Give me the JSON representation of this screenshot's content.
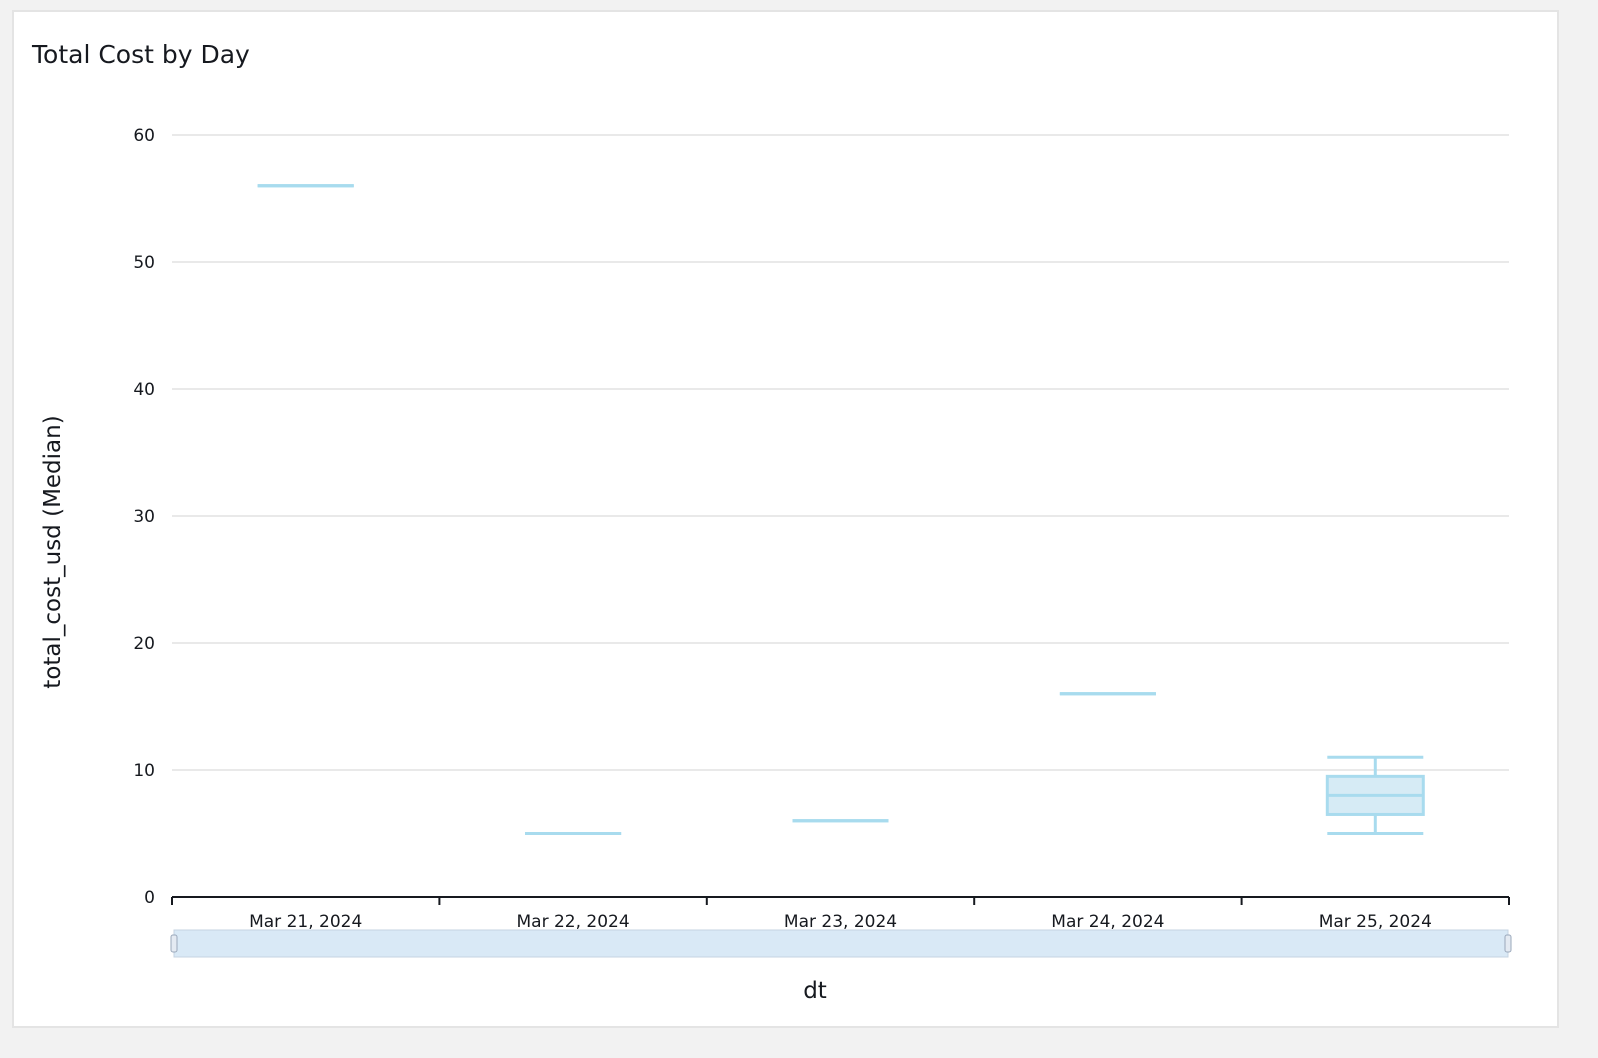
{
  "chart_data": {
    "type": "boxplot",
    "title": "Total Cost by Day",
    "xlabel": "dt",
    "ylabel": "total_cost_usd (Median)",
    "categories": [
      "Mar 21, 2024",
      "Mar 22, 2024",
      "Mar 23, 2024",
      "Mar 24, 2024",
      "Mar 25, 2024"
    ],
    "boxes": [
      {
        "min": 56,
        "q1": 56,
        "median": 56,
        "q3": 56,
        "max": 56
      },
      {
        "min": 5,
        "q1": 5,
        "median": 5,
        "q3": 5,
        "max": 5
      },
      {
        "min": 6,
        "q1": 6,
        "median": 6,
        "q3": 6,
        "max": 6
      },
      {
        "min": 16,
        "q1": 16,
        "median": 16,
        "q3": 16,
        "max": 16
      },
      {
        "min": 5,
        "q1": 6.5,
        "median": 8,
        "q3": 9.5,
        "max": 11
      }
    ],
    "yticks": [
      0,
      10,
      20,
      30,
      40,
      50,
      60
    ],
    "ylim": [
      0,
      60
    ],
    "grid": true,
    "colors": {
      "box_stroke": "#a8dbee",
      "box_fill": "#d6ebf5",
      "scrollbar": "#d9e9f6"
    }
  }
}
